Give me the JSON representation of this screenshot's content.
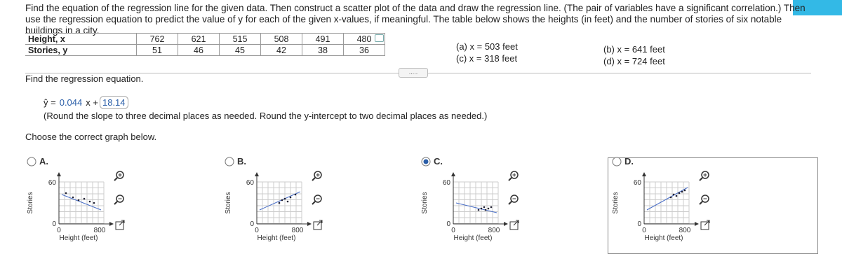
{
  "problem": {
    "text": "Find the equation of the regression line for the given data. Then construct a scatter plot of the data and draw the regression line. (The pair of variables have a significant correlation.) Then use the regression equation to predict the value of y for each of the given x-values, if meaningful. The table below shows the heights (in feet) and the number of stories of six notable buildings in a city."
  },
  "table": {
    "rows": [
      [
        "Height, x",
        "762",
        "621",
        "515",
        "508",
        "491",
        "480"
      ],
      [
        "Stories, y",
        "51",
        "46",
        "45",
        "42",
        "38",
        "36"
      ]
    ]
  },
  "questions": [
    "(a) x = 503 feet",
    "(c) x = 318 feet",
    "(b) x = 641 feet",
    "(d) x = 724 feet"
  ],
  "more": ".....",
  "prompt": "Find the regression equation.",
  "equation": {
    "lhs": "ŷ =",
    "slope": "0.044",
    "mid": "x +",
    "intercept": "18.14"
  },
  "note": "(Round the slope to three decimal places as needed. Round the y-intercept to two decimal places as needed.)",
  "choose": "Choose the correct graph below.",
  "options": [
    {
      "label": "A.",
      "y_label": "Stories",
      "x_label": "Height (feet)",
      "y_ticks": [
        "60",
        "0"
      ],
      "x_ticks": [
        "0",
        "800"
      ]
    },
    {
      "label": "B.",
      "y_label": "Stories",
      "x_label": "Height (feet)",
      "y_ticks": [
        "60",
        "0"
      ],
      "x_ticks": [
        "0",
        "800"
      ]
    },
    {
      "label": "C.",
      "y_label": "Stories",
      "x_label": "Height (feet)",
      "y_ticks": [
        "60",
        "0"
      ],
      "x_ticks": [
        "0",
        "800"
      ]
    },
    {
      "label": "D.",
      "y_label": "Stories",
      "x_label": "Height (feet)",
      "y_ticks": [
        "60",
        "0"
      ],
      "x_ticks": [
        "0",
        "800"
      ]
    }
  ]
}
